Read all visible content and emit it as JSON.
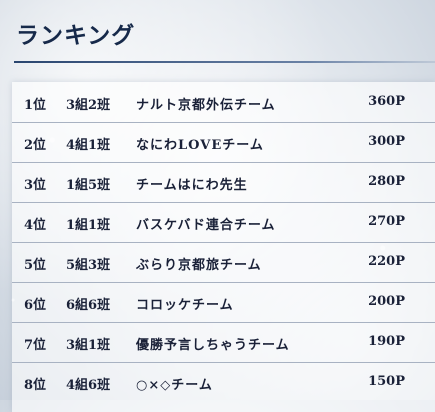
{
  "header": {
    "title": "ランキング"
  },
  "ranking": [
    {
      "rank": "1位",
      "group": "3組2班",
      "team": "ナルト京都外伝チーム",
      "points": "360P"
    },
    {
      "rank": "2位",
      "group": "4組1班",
      "team": "なにわLOVEチーム",
      "points": "300P"
    },
    {
      "rank": "3位",
      "group": "1組5班",
      "team": "チームはにわ先生",
      "points": "280P"
    },
    {
      "rank": "4位",
      "group": "1組1班",
      "team": "バスケバド連合チーム",
      "points": "270P"
    },
    {
      "rank": "5位",
      "group": "5組3班",
      "team": "ぶらり京都旅チーム",
      "points": "220P"
    },
    {
      "rank": "6位",
      "group": "6組6班",
      "team": "コロッケチーム",
      "points": "200P"
    },
    {
      "rank": "7位",
      "group": "3組1班",
      "team": "優勝予言しちゃうチーム",
      "points": "190P"
    },
    {
      "rank": "8位",
      "group": "4組6班",
      "team": "○×◇チーム",
      "points": "150P"
    }
  ]
}
